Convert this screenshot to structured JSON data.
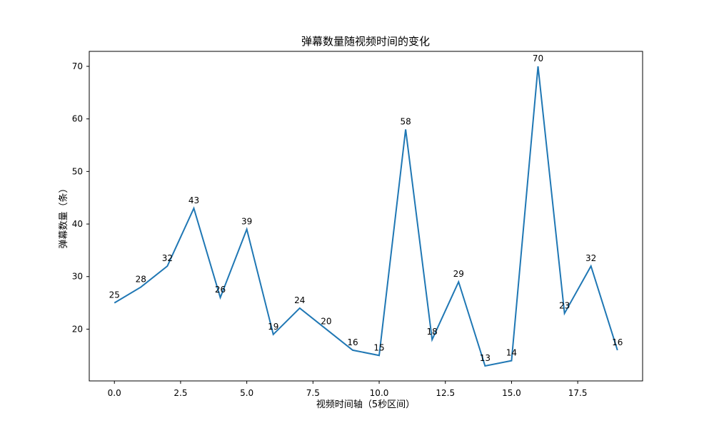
{
  "chart_data": {
    "type": "line",
    "title": "弹幕数量随视频时间的变化",
    "xlabel": "视频时间轴（5秒区间）",
    "ylabel": "弹幕数量（条）",
    "x": [
      0,
      1,
      2,
      3,
      4,
      5,
      6,
      7,
      8,
      9,
      10,
      11,
      12,
      13,
      14,
      15,
      16,
      17,
      18,
      19
    ],
    "values": [
      25,
      28,
      32,
      43,
      26,
      39,
      19,
      24,
      20,
      16,
      15,
      58,
      18,
      29,
      13,
      14,
      70,
      23,
      32,
      16
    ],
    "xlim": [
      -0.95,
      19.95
    ],
    "ylim": [
      10.15,
      72.85
    ],
    "xticks": [
      0.0,
      2.5,
      5.0,
      7.5,
      10.0,
      12.5,
      15.0,
      17.5
    ],
    "xtick_labels": [
      "0.0",
      "2.5",
      "5.0",
      "7.5",
      "10.0",
      "12.5",
      "15.0",
      "17.5"
    ],
    "yticks": [
      20,
      30,
      40,
      50,
      60,
      70
    ],
    "ytick_labels": [
      "20",
      "30",
      "40",
      "50",
      "60",
      "70"
    ],
    "line_color": "#1f77b4",
    "grid": false,
    "legend": "none"
  }
}
